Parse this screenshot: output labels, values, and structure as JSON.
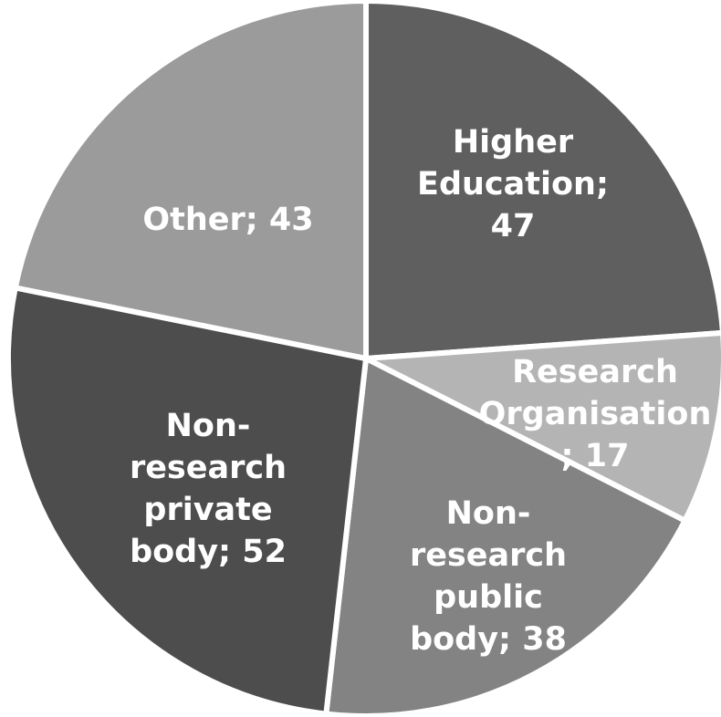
{
  "chart_data": {
    "type": "pie",
    "start_angle_deg": 0,
    "direction": "clockwise",
    "legend": "none",
    "slices": [
      {
        "name": "Higher Education",
        "value": 47,
        "color": "#5f5f5f",
        "label_lines": [
          "Higher",
          "Education;",
          "47"
        ]
      },
      {
        "name": "Research Organisation",
        "value": 17,
        "color": "#b4b4b4",
        "label_lines": [
          "Research",
          "Organisation",
          "; 17"
        ]
      },
      {
        "name": "Non-research public body",
        "value": 38,
        "color": "#838383",
        "label_lines": [
          "Non-",
          "research",
          "public",
          "body; 38"
        ]
      },
      {
        "name": "Non-research private body",
        "value": 52,
        "color": "#4d4d4d",
        "label_lines": [
          "Non-",
          "research",
          "private",
          "body; 52"
        ]
      },
      {
        "name": "Other",
        "value": 43,
        "color": "#9b9b9b",
        "label_lines": [
          "Other; 43"
        ]
      }
    ]
  }
}
